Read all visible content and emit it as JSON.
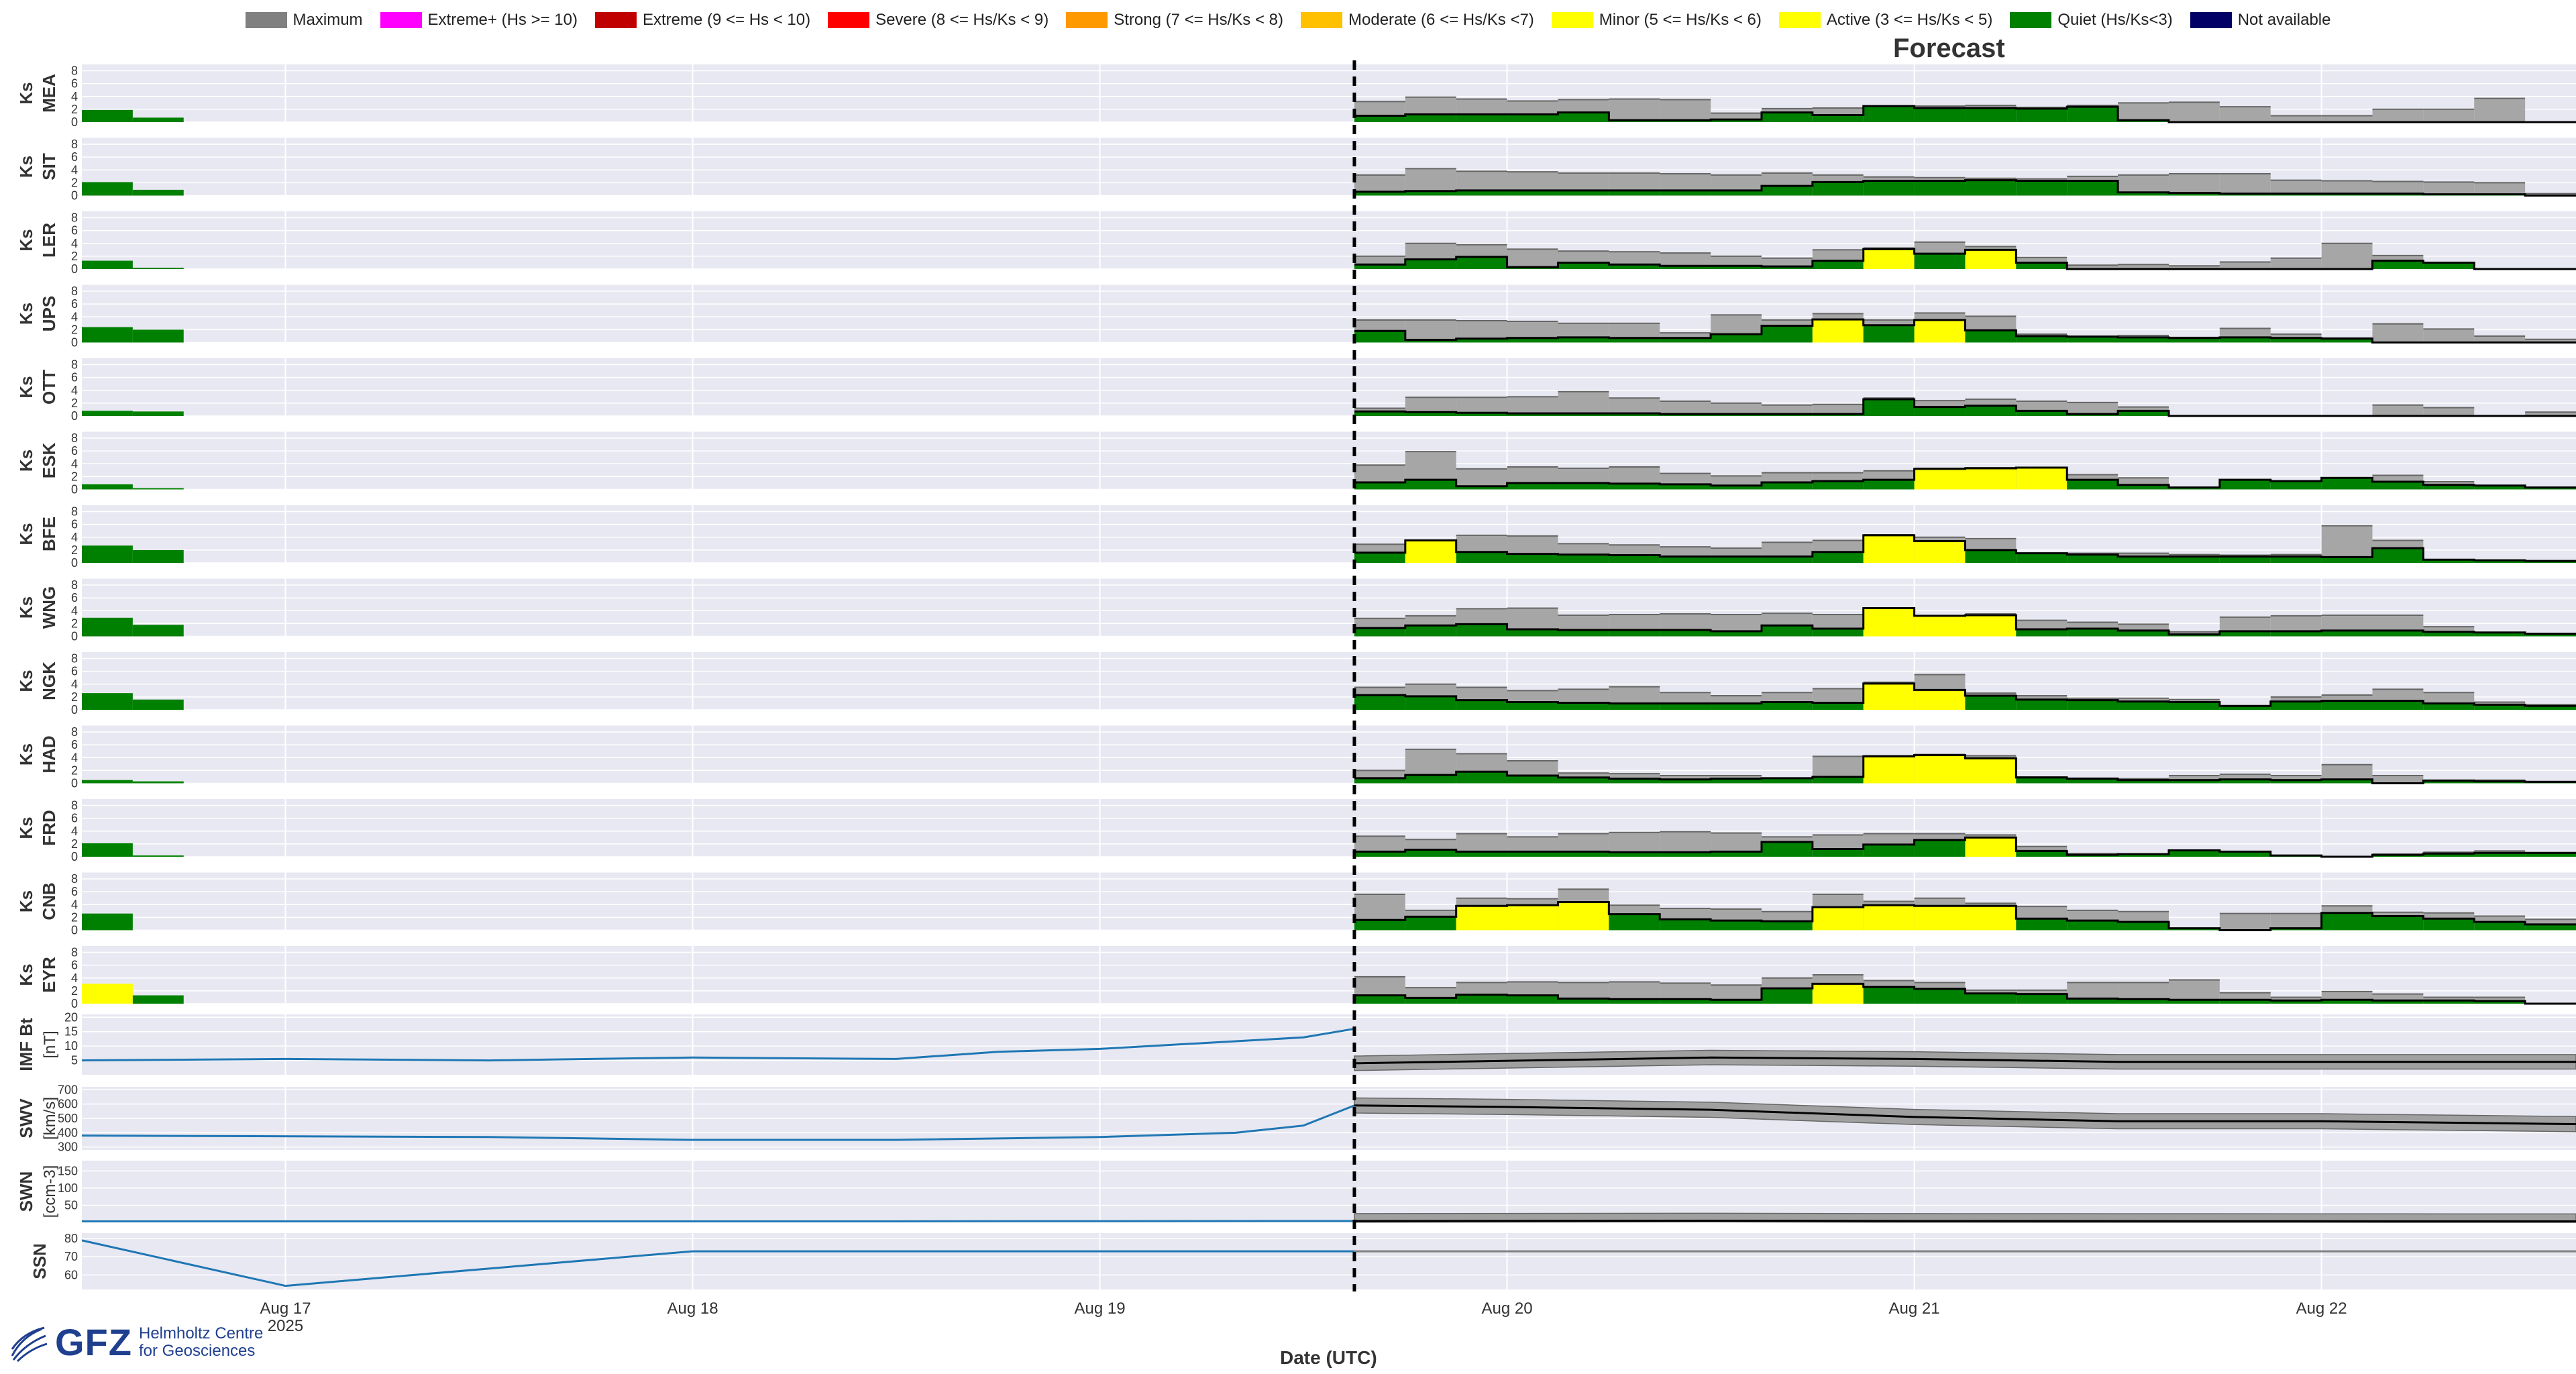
{
  "legend": [
    {
      "label": "Maximum",
      "color": "#808080"
    },
    {
      "label": "Extreme+ (Hs >= 10)",
      "color": "#ff00ff"
    },
    {
      "label": "Extreme (9 <= Hs < 10)",
      "color": "#c00000"
    },
    {
      "label": "Severe (8 <= Hs/Ks < 9)",
      "color": "#ff0000"
    },
    {
      "label": "Strong (7 <= Hs/Ks < 8)",
      "color": "#ff9900"
    },
    {
      "label": "Moderate (6 <= Hs/Ks <7)",
      "color": "#ffc000"
    },
    {
      "label": "Minor (5 <= Hs/Ks < 6)",
      "color": "#ffff00"
    },
    {
      "label": "Active (3 <= Hs/Ks < 5)",
      "color": "#ffff00"
    },
    {
      "label": "Quiet (Hs/Ks<3)",
      "color": "#008000"
    },
    {
      "label": "Not available",
      "color": "#000066"
    }
  ],
  "forecast_title": "Forecast",
  "xlabel": "Date (UTC)",
  "logo": {
    "letters": "GFZ",
    "line1": "Helmholtz Centre",
    "line2": "for Geosciences"
  },
  "chart_data": {
    "type": "bar",
    "x_axis": {
      "range": [
        "2025-08-16 12:00",
        "2025-08-22 15:00"
      ],
      "ticks": [
        "Aug 17",
        "Aug 18",
        "Aug 19",
        "Aug 20",
        "Aug 21",
        "Aug 22"
      ],
      "year_label": "2025",
      "forecast_start": "2025-08-19 15:00"
    },
    "ks_yticks": [
      0,
      2,
      4,
      6,
      8
    ],
    "ks_ylim": [
      0,
      9
    ],
    "observed_bin_start": "2025-08-16 12:00",
    "forecast_bin_start": "2025-08-19 15:00",
    "bin_hours": 3,
    "stations": [
      {
        "name": "MEA",
        "observed": [
          1.9,
          0.7
        ],
        "forecast_max": [
          3.2,
          3.9,
          3.6,
          3.3,
          3.5,
          3.6,
          3.5,
          1.4,
          2.1,
          2.2,
          2.2,
          2.5,
          2.6,
          2.3,
          2.6,
          3.0,
          3.1,
          2.4,
          1.0,
          1.0,
          2.0,
          2.0,
          3.7,
          0.0
        ],
        "forecast_val": [
          1.0,
          1.2,
          1.2,
          1.2,
          1.5,
          0.3,
          0.3,
          0.4,
          1.5,
          1.1,
          2.5,
          2.2,
          2.2,
          2.1,
          2.4,
          0.3,
          0.0,
          0.0,
          0.0,
          0.0,
          0.0,
          0.0,
          0.0,
          0.0
        ]
      },
      {
        "name": "SIT",
        "observed": [
          2.1,
          0.9
        ],
        "forecast_max": [
          3.2,
          4.2,
          3.8,
          3.7,
          3.5,
          3.5,
          3.4,
          3.2,
          3.5,
          3.2,
          2.9,
          2.8,
          2.7,
          2.6,
          3.0,
          3.2,
          3.4,
          3.4,
          2.4,
          2.3,
          2.2,
          2.1,
          2.0,
          0.3
        ],
        "forecast_val": [
          0.6,
          0.7,
          0.8,
          0.8,
          0.8,
          0.8,
          0.8,
          0.8,
          1.5,
          2.1,
          2.3,
          2.3,
          2.4,
          2.3,
          2.3,
          0.5,
          0.4,
          0.3,
          0.3,
          0.3,
          0.3,
          0.2,
          0.2,
          0.0
        ],
        "trailing_step": true
      },
      {
        "name": "LER",
        "observed": [
          1.3,
          0.2
        ],
        "forecast_max": [
          2.0,
          4.0,
          3.8,
          3.1,
          2.8,
          2.7,
          2.5,
          2.0,
          1.7,
          3.0,
          3.3,
          4.2,
          3.5,
          1.8,
          0.6,
          0.7,
          0.5,
          1.1,
          1.7,
          4.0,
          2.1,
          0.3,
          0.0,
          0.0
        ],
        "forecast_val": [
          0.7,
          1.5,
          1.9,
          0.3,
          1.0,
          0.7,
          0.5,
          0.5,
          0.4,
          1.3,
          3.1,
          2.4,
          3.0,
          1.0,
          0.0,
          0.0,
          0.0,
          0.0,
          0.0,
          0.0,
          1.3,
          1.0,
          0.0,
          0.0
        ]
      },
      {
        "name": "UPS",
        "observed": [
          2.4,
          2.0
        ],
        "forecast_max": [
          3.5,
          3.5,
          3.4,
          3.3,
          3.0,
          3.0,
          1.5,
          4.3,
          3.5,
          4.5,
          3.5,
          4.6,
          4.1,
          1.3,
          1.0,
          1.1,
          0.8,
          2.2,
          1.3,
          0.7,
          2.9,
          2.1,
          1.0,
          0.5
        ],
        "forecast_val": [
          1.8,
          0.4,
          0.6,
          0.7,
          0.8,
          0.7,
          0.7,
          1.3,
          2.6,
          3.6,
          2.7,
          3.5,
          1.9,
          1.0,
          0.9,
          0.8,
          0.7,
          0.8,
          0.7,
          0.6,
          0.0,
          0.0,
          0.0,
          0.0
        ]
      },
      {
        "name": "OTT",
        "observed": [
          0.8,
          0.7
        ],
        "forecast_max": [
          1.2,
          2.9,
          2.9,
          3.0,
          3.8,
          2.8,
          2.3,
          2.0,
          1.7,
          1.8,
          2.8,
          2.4,
          2.6,
          2.3,
          2.1,
          1.4,
          0.0,
          0.0,
          0.0,
          0.0,
          1.7,
          1.3,
          0.0,
          0.6
        ],
        "forecast_val": [
          0.7,
          0.6,
          0.5,
          0.4,
          0.4,
          0.4,
          0.3,
          0.3,
          0.3,
          0.3,
          2.6,
          1.4,
          1.6,
          0.8,
          0.3,
          0.8,
          0.0,
          0.0,
          0.0,
          0.0,
          0.0,
          0.0,
          0.0,
          0.0
        ]
      },
      {
        "name": "ESK",
        "observed": [
          0.8,
          0.2
        ],
        "forecast_max": [
          3.8,
          5.9,
          3.2,
          3.5,
          3.3,
          3.5,
          2.5,
          2.1,
          2.6,
          2.6,
          2.9,
          3.3,
          3.4,
          3.3,
          2.3,
          1.8,
          0.0,
          0.0,
          0.0,
          0.0,
          2.2,
          1.2,
          0.5,
          0.3
        ],
        "forecast_val": [
          1.1,
          1.5,
          0.5,
          1.0,
          1.0,
          0.9,
          0.8,
          0.6,
          1.1,
          1.3,
          1.5,
          3.2,
          3.3,
          3.4,
          1.5,
          0.7,
          0.3,
          1.5,
          1.3,
          1.8,
          1.2,
          0.7,
          0.6,
          0.3
        ]
      },
      {
        "name": "BFE",
        "observed": [
          2.7,
          2.0
        ],
        "forecast_max": [
          2.9,
          3.3,
          4.3,
          4.2,
          3.0,
          2.8,
          2.5,
          2.3,
          3.2,
          3.5,
          4.4,
          4.0,
          3.8,
          1.5,
          1.5,
          1.5,
          1.3,
          1.2,
          1.3,
          5.8,
          3.5,
          0.3,
          0.3,
          0.3
        ],
        "forecast_val": [
          1.6,
          3.5,
          1.7,
          1.4,
          1.3,
          1.2,
          1.0,
          1.0,
          1.0,
          1.7,
          4.3,
          3.4,
          2.0,
          1.5,
          1.3,
          1.0,
          1.0,
          1.0,
          1.0,
          0.9,
          2.3,
          0.5,
          0.4,
          0.3
        ]
      },
      {
        "name": "WNG",
        "observed": [
          2.9,
          1.8
        ],
        "forecast_max": [
          2.8,
          3.2,
          4.3,
          4.4,
          3.3,
          3.4,
          3.5,
          3.4,
          3.6,
          3.4,
          4.3,
          3.2,
          3.5,
          2.5,
          2.2,
          1.9,
          0.7,
          3.0,
          3.2,
          3.3,
          3.3,
          1.5,
          0.5,
          0.4
        ],
        "forecast_val": [
          1.3,
          1.7,
          1.9,
          1.1,
          1.0,
          1.0,
          1.0,
          0.8,
          1.7,
          1.2,
          4.4,
          3.2,
          3.3,
          1.1,
          1.2,
          0.9,
          0.3,
          0.8,
          0.8,
          0.9,
          0.9,
          0.7,
          0.6,
          0.4
        ]
      },
      {
        "name": "NGK",
        "observed": [
          2.6,
          1.6
        ],
        "forecast_max": [
          3.5,
          4.0,
          3.5,
          3.0,
          3.2,
          3.6,
          2.7,
          2.2,
          2.7,
          3.3,
          4.3,
          5.5,
          2.6,
          2.2,
          1.8,
          1.8,
          1.6,
          0.6,
          2.0,
          2.3,
          3.2,
          2.7,
          1.2,
          0.8
        ],
        "forecast_val": [
          2.3,
          2.1,
          1.5,
          1.2,
          1.1,
          1.0,
          1.0,
          1.0,
          1.2,
          1.1,
          4.1,
          3.1,
          2.2,
          1.6,
          1.5,
          1.3,
          1.2,
          0.6,
          1.3,
          1.4,
          1.4,
          1.0,
          0.8,
          0.6
        ]
      },
      {
        "name": "HAD",
        "observed": [
          0.5,
          0.3
        ],
        "forecast_max": [
          2.0,
          5.3,
          4.6,
          3.5,
          1.6,
          1.5,
          1.2,
          1.2,
          0.8,
          4.2,
          4.3,
          4.5,
          4.3,
          1.0,
          0.8,
          0.7,
          1.2,
          1.4,
          1.2,
          2.9,
          1.2,
          0.5,
          0.5,
          0.3
        ],
        "forecast_val": [
          0.8,
          1.3,
          1.8,
          1.2,
          0.9,
          0.7,
          0.6,
          0.7,
          0.8,
          1.0,
          4.2,
          4.4,
          3.9,
          0.9,
          0.7,
          0.5,
          0.5,
          0.6,
          0.5,
          0.6,
          0.0,
          0.4,
          0.3,
          0.2
        ]
      },
      {
        "name": "FRD",
        "observed": [
          2.1,
          0.2
        ],
        "forecast_max": [
          3.2,
          2.7,
          3.6,
          3.1,
          3.6,
          3.8,
          3.9,
          3.7,
          3.1,
          3.4,
          3.6,
          3.6,
          3.4,
          1.6,
          0.5,
          0.4,
          1.0,
          0.4,
          0.2,
          0.0,
          0.4,
          0.7,
          0.9,
          0.6
        ],
        "forecast_val": [
          0.8,
          1.1,
          0.8,
          0.8,
          0.8,
          0.7,
          0.7,
          0.8,
          2.3,
          1.2,
          1.9,
          2.6,
          3.0,
          0.9,
          0.3,
          0.4,
          1.0,
          0.8,
          0.2,
          0.0,
          0.3,
          0.5,
          0.6,
          0.6
        ]
      },
      {
        "name": "CNB",
        "observed": [
          2.6,
          0.0
        ],
        "forecast_max": [
          5.6,
          3.1,
          5.0,
          4.9,
          6.4,
          3.9,
          3.4,
          3.3,
          2.9,
          5.6,
          4.5,
          5.0,
          4.2,
          3.7,
          3.1,
          2.9,
          0.3,
          2.6,
          2.6,
          3.8,
          2.8,
          2.7,
          2.2,
          1.7
        ],
        "forecast_val": [
          1.6,
          2.1,
          3.8,
          3.9,
          4.4,
          2.5,
          1.7,
          1.5,
          1.4,
          3.6,
          3.9,
          3.8,
          3.8,
          1.8,
          1.5,
          1.3,
          0.3,
          0.0,
          0.3,
          2.7,
          2.2,
          1.8,
          1.3,
          0.9
        ]
      },
      {
        "name": "EYR",
        "observed": [
          3.1,
          1.3
        ],
        "forecast_max": [
          4.2,
          2.5,
          3.3,
          3.4,
          3.3,
          3.4,
          3.2,
          2.9,
          4.0,
          4.5,
          3.6,
          3.3,
          2.1,
          2.1,
          3.3,
          3.3,
          3.7,
          1.7,
          1.0,
          1.9,
          1.5,
          1.0,
          1.0,
          0.0
        ],
        "forecast_val": [
          1.3,
          0.9,
          1.4,
          1.3,
          0.8,
          0.7,
          0.7,
          0.6,
          2.4,
          3.1,
          2.6,
          2.3,
          1.6,
          1.5,
          0.8,
          0.7,
          0.6,
          0.6,
          0.5,
          0.6,
          0.5,
          0.5,
          0.4,
          0.0
        ]
      }
    ],
    "solar_wind": [
      {
        "name": "IMF Bt",
        "unit": "[nT]",
        "yticks": [
          5,
          10,
          15,
          20
        ],
        "ylim": [
          0,
          21
        ],
        "observed_x": [
          "2025-08-16 12:00",
          "2025-08-17 00:00",
          "2025-08-17 12:00",
          "2025-08-18 00:00",
          "2025-08-18 12:00",
          "2025-08-18 18:00",
          "2025-08-19 00:00",
          "2025-08-19 06:00",
          "2025-08-19 12:00",
          "2025-08-19 15:00"
        ],
        "observed_y": [
          5,
          5.5,
          5,
          6,
          5.5,
          8,
          9,
          11,
          13,
          16
        ],
        "forecast_x": [
          "2025-08-19 15:00",
          "2025-08-20 12:00",
          "2025-08-21 00:00",
          "2025-08-21 12:00",
          "2025-08-22 00:00",
          "2025-08-22 15:00"
        ],
        "forecast_y": [
          4,
          6,
          5.5,
          4.5,
          4.5,
          4.5
        ]
      },
      {
        "name": "SWV",
        "unit": "[km/s]",
        "yticks": [
          300,
          400,
          500,
          600,
          700
        ],
        "ylim": [
          280,
          720
        ],
        "observed_x": [
          "2025-08-16 12:00",
          "2025-08-17 12:00",
          "2025-08-18 00:00",
          "2025-08-18 12:00",
          "2025-08-19 00:00",
          "2025-08-19 08:00",
          "2025-08-19 12:00",
          "2025-08-19 15:00"
        ],
        "observed_y": [
          380,
          370,
          350,
          350,
          370,
          400,
          450,
          590
        ],
        "forecast_x": [
          "2025-08-19 15:00",
          "2025-08-20 00:00",
          "2025-08-20 12:00",
          "2025-08-21 00:00",
          "2025-08-21 12:00",
          "2025-08-22 00:00",
          "2025-08-22 15:00"
        ],
        "forecast_y": [
          590,
          580,
          560,
          510,
          480,
          480,
          460
        ]
      },
      {
        "name": "SWN",
        "unit": "[ccm-3]",
        "yticks": [
          50,
          100,
          150
        ],
        "ylim": [
          0,
          180
        ],
        "observed_x": [
          "2025-08-16 12:00",
          "2025-08-17 12:00",
          "2025-08-18 12:00",
          "2025-08-19 12:00",
          "2025-08-19 15:00"
        ],
        "observed_y": [
          3,
          3,
          3,
          4,
          4
        ],
        "forecast_x": [
          "2025-08-19 15:00",
          "2025-08-20 12:00",
          "2025-08-21 00:00",
          "2025-08-22 15:00"
        ],
        "forecast_y": [
          4,
          5,
          4,
          3
        ]
      },
      {
        "name": "SSN",
        "unit": "",
        "yticks": [
          60,
          70,
          80
        ],
        "ylim": [
          52,
          83
        ],
        "observed_x": [
          "2025-08-16 12:00",
          "2025-08-17 00:00",
          "2025-08-18 00:00",
          "2025-08-19 15:00"
        ],
        "observed_y": [
          79,
          54,
          73,
          73
        ],
        "forecast_x": [
          "2025-08-19 15:00",
          "2025-08-22 15:00"
        ],
        "forecast_y": [
          73,
          73
        ]
      }
    ]
  }
}
